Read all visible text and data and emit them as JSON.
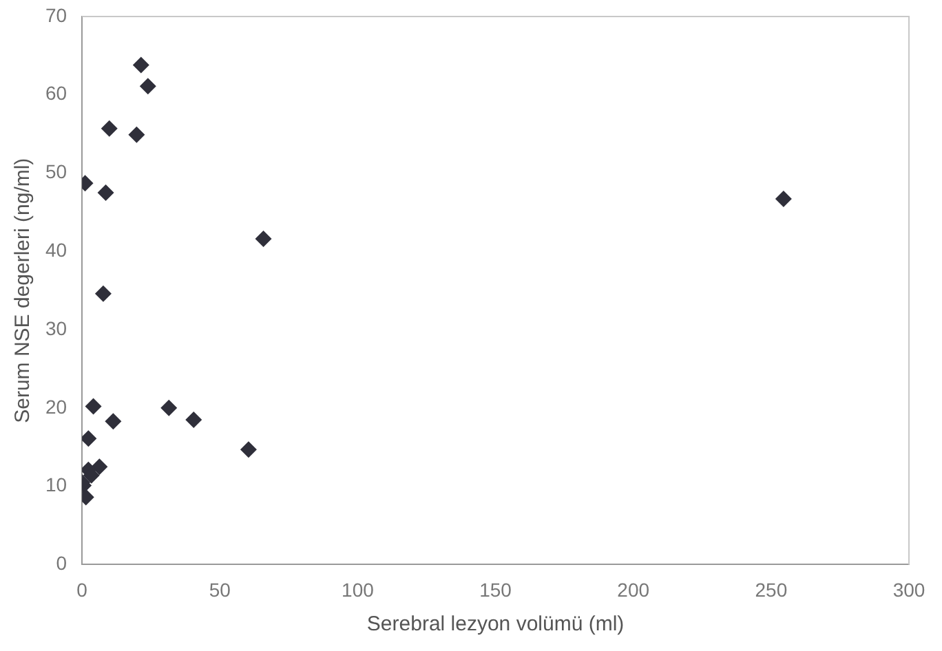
{
  "chart_data": {
    "type": "scatter",
    "xlabel": "Serebral lezyon volümü (ml)",
    "ylabel": "Serum NSE degerleri (ng/ml)",
    "xlim": [
      0,
      300
    ],
    "xticks": [
      0,
      50,
      100,
      150,
      200,
      250,
      300
    ],
    "ylim": [
      0,
      70
    ],
    "yticks": [
      0,
      10,
      20,
      30,
      40,
      50,
      60,
      70
    ],
    "grid": false,
    "legend": false,
    "marker": "diamond",
    "series": [
      {
        "color": "#2f2f3a",
        "x": [
          21.4,
          23.9,
          9.9,
          19.8,
          1.1,
          8.6,
          65.8,
          254.5,
          7.7,
          4.1,
          31.5,
          40.5,
          11.3,
          2.3,
          60.4,
          6.3,
          2.3,
          0.5,
          1.4,
          3.4,
          0
        ],
        "values": [
          63.8,
          61.1,
          55.7,
          54.9,
          48.7,
          47.5,
          41.6,
          46.7,
          34.6,
          20.2,
          20.0,
          18.5,
          18.3,
          16.1,
          14.7,
          12.5,
          12.1,
          10.1,
          8.6,
          11.4,
          10.5
        ]
      }
    ]
  }
}
